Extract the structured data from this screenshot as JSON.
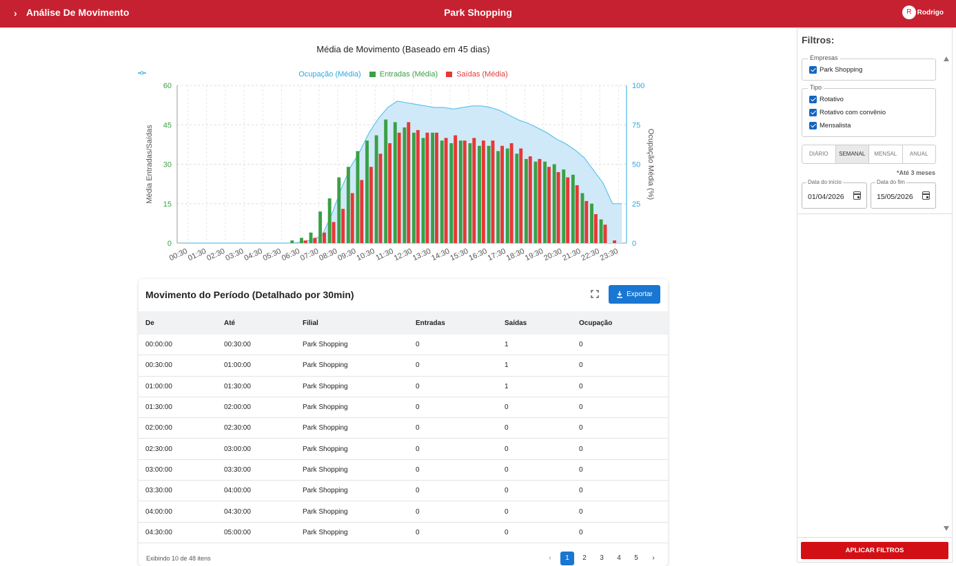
{
  "header": {
    "title": "Análise De Movimento",
    "center": "Park Shopping",
    "avatar_letter": "R",
    "user_name": "Rodrigo",
    "bg_color": "#c62130"
  },
  "chart_data": {
    "type": "bar",
    "title": "Média de Movimento (Baseado em 45 dias)",
    "ylabel": "Média Entradas/Saídas",
    "y2label": "Ocupação Média (%)",
    "ylim": [
      0,
      60
    ],
    "y2lim": [
      0,
      100
    ],
    "yticks": [
      0,
      15,
      30,
      45,
      60
    ],
    "y2ticks": [
      0,
      25,
      50,
      75,
      100
    ],
    "legend": [
      "Ocupação (Média)",
      "Entradas (Média)",
      "Saídas (Média)"
    ],
    "xtick_labels": [
      "00:30",
      "01:30",
      "02:30",
      "03:30",
      "04:30",
      "05:30",
      "06:30",
      "07:30",
      "08:30",
      "09:30",
      "10:30",
      "11:30",
      "12:30",
      "13:30",
      "14:30",
      "15:30",
      "16:30",
      "17:30",
      "18:30",
      "19:30",
      "20:30",
      "21:30",
      "22:30",
      "23:30"
    ],
    "categories": [
      "00:00",
      "00:30",
      "01:00",
      "01:30",
      "02:00",
      "02:30",
      "03:00",
      "03:30",
      "04:00",
      "04:30",
      "05:00",
      "05:30",
      "06:00",
      "06:30",
      "07:00",
      "07:30",
      "08:00",
      "08:30",
      "09:00",
      "09:30",
      "10:00",
      "10:30",
      "11:00",
      "11:30",
      "12:00",
      "12:30",
      "13:00",
      "13:30",
      "14:00",
      "14:30",
      "15:00",
      "15:30",
      "16:00",
      "16:30",
      "17:00",
      "17:30",
      "18:00",
      "18:30",
      "19:00",
      "19:30",
      "20:00",
      "20:30",
      "21:00",
      "21:30",
      "22:00",
      "22:30",
      "23:00",
      "23:30"
    ],
    "series": [
      {
        "name": "Entradas (Média)",
        "color": "#3aa045",
        "values": [
          0,
          0,
          0,
          0,
          0,
          0,
          0,
          0,
          0,
          0,
          0,
          0,
          1,
          2,
          4,
          12,
          17,
          25,
          29,
          35,
          39,
          41,
          47,
          46,
          44,
          42,
          40,
          42,
          39,
          38,
          39,
          38,
          37,
          37,
          35,
          36,
          34,
          32,
          31,
          31,
          30,
          28,
          26,
          19,
          15,
          9,
          0,
          0
        ]
      },
      {
        "name": "Saídas (Média)",
        "color": "#e53935",
        "values": [
          0,
          0,
          0,
          0,
          0,
          0,
          0,
          0,
          0,
          0,
          0,
          0,
          0,
          1,
          2,
          4,
          8,
          13,
          19,
          24,
          29,
          34,
          38,
          42,
          46,
          43,
          42,
          42,
          40,
          41,
          39,
          40,
          39,
          39,
          37,
          38,
          36,
          33,
          32,
          29,
          27,
          25,
          22,
          16,
          11,
          7,
          1,
          0
        ]
      },
      {
        "name": "Ocupação (Média)",
        "color": "#2aa9e0",
        "values": [
          0,
          0,
          0,
          0,
          0,
          0,
          0,
          0,
          0,
          0,
          0,
          0,
          0,
          1,
          2,
          5,
          18,
          34,
          48,
          58,
          70,
          79,
          86,
          90,
          89,
          88,
          87,
          86,
          86,
          85,
          86,
          87,
          87,
          86,
          84,
          81,
          78,
          76,
          73,
          70,
          66,
          63,
          59,
          54,
          46,
          38,
          25,
          25
        ]
      }
    ]
  },
  "table": {
    "title": "Movimento do Período (Detalhado por 30min)",
    "export_label": "Exportar",
    "columns": [
      "De",
      "Até",
      "Filial",
      "Entradas",
      "Saídas",
      "Ocupação"
    ],
    "rows": [
      [
        "00:00:00",
        "00:30:00",
        "Park Shopping",
        "0",
        "1",
        "0"
      ],
      [
        "00:30:00",
        "01:00:00",
        "Park Shopping",
        "0",
        "1",
        "0"
      ],
      [
        "01:00:00",
        "01:30:00",
        "Park Shopping",
        "0",
        "1",
        "0"
      ],
      [
        "01:30:00",
        "02:00:00",
        "Park Shopping",
        "0",
        "0",
        "0"
      ],
      [
        "02:00:00",
        "02:30:00",
        "Park Shopping",
        "0",
        "0",
        "0"
      ],
      [
        "02:30:00",
        "03:00:00",
        "Park Shopping",
        "0",
        "0",
        "0"
      ],
      [
        "03:00:00",
        "03:30:00",
        "Park Shopping",
        "0",
        "0",
        "0"
      ],
      [
        "03:30:00",
        "04:00:00",
        "Park Shopping",
        "0",
        "0",
        "0"
      ],
      [
        "04:00:00",
        "04:30:00",
        "Park Shopping",
        "0",
        "0",
        "0"
      ],
      [
        "04:30:00",
        "05:00:00",
        "Park Shopping",
        "0",
        "0",
        "0"
      ]
    ],
    "footer": "Exibindo 10 de 48 itens",
    "pages": [
      "1",
      "2",
      "3",
      "4",
      "5"
    ],
    "current_page": "1",
    "prev_glyph": "‹",
    "next_glyph": "›"
  },
  "filters": {
    "title": "Filtros:",
    "empresas_label": "Empresas",
    "empresas": [
      {
        "label": "Park Shopping",
        "checked": true
      }
    ],
    "tipo_label": "Tipo",
    "tipos": [
      {
        "label": "Rotativo",
        "checked": true
      },
      {
        "label": "Rotativo com convênio",
        "checked": true
      },
      {
        "label": "Mensalista",
        "checked": true
      }
    ],
    "periods": [
      "DIÁRIO",
      "SEMANAL",
      "MENSAL",
      "ANUAL"
    ],
    "selected_period": "SEMANAL",
    "note": "*Até 3 meses",
    "start_label": "Data do início",
    "start_value": "01/04/2026",
    "end_label": "Data do fim",
    "end_value": "15/05/2026",
    "apply_label": "APLICAR FILTROS"
  }
}
